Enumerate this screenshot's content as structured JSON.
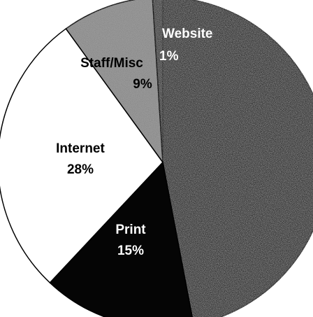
{
  "chart_data": {
    "type": "pie",
    "title": "",
    "slices": [
      {
        "label": "Website",
        "value": 1,
        "display": "1%",
        "fill": "#3a3a3a",
        "pattern": "speckle-dark",
        "text_color": "#ffffff"
      },
      {
        "label": "Print",
        "value": 15,
        "display": "15%",
        "fill": "#050505",
        "pattern": "solid",
        "text_color": "#ffffff"
      },
      {
        "label": "Internet",
        "value": 28,
        "display": "28%",
        "fill": "#ffffff",
        "pattern": "solid",
        "text_color": "#000000"
      },
      {
        "label": "Staff/Misc",
        "value": 9,
        "display": "9%",
        "fill": "#9a9a9a",
        "pattern": "speckle-light",
        "text_color": "#000000"
      }
    ],
    "large_slice": {
      "fill": "#2e2e2e",
      "pattern": "speckle-dark"
    },
    "legend": "none",
    "grid": false
  }
}
